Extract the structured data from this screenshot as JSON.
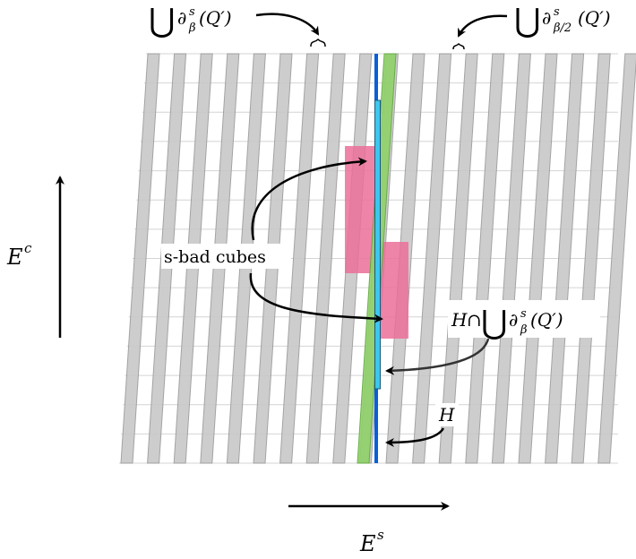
{
  "labels": {
    "union_boundary_beta": {
      "big_cup": "⋃",
      "partial": "∂",
      "sup": "s",
      "sub": "β",
      "arg": "(Q′)"
    },
    "union_boundary_beta_half": {
      "big_cup": "⋃",
      "partial": "∂",
      "sup": "s",
      "sub": "β/2",
      "arg": "(Q′)"
    },
    "intersection_label": {
      "h": "H",
      "cap": "∩",
      "big_cup": "⋃",
      "partial": "∂",
      "sup": "s",
      "sub": "β",
      "arg": "(Q′)"
    },
    "h_label": "H",
    "s_bad_cubes": "s-bad cubes",
    "ec_label": {
      "base": "E",
      "sup": "c"
    },
    "es_label": {
      "base": "E",
      "sup": "s"
    }
  },
  "colors": {
    "grid_line": "#d4d4d4",
    "strip_fill": "#c8c8c8",
    "strip_edge": "#9a9a9a",
    "green_strip": "#8fd16a",
    "blue_line": "#0a5fd6",
    "cyan_bar": "#3cc7f0",
    "pink_cube": "#ec6f9a",
    "arrow": "#000000"
  }
}
